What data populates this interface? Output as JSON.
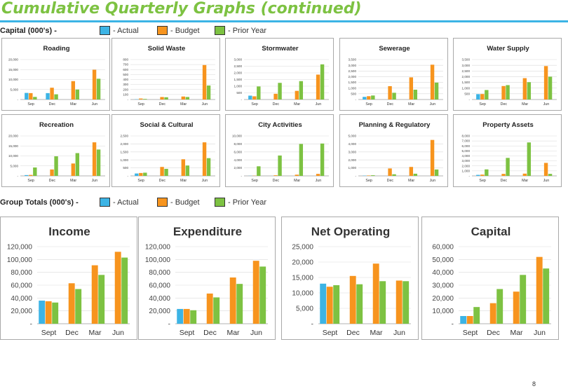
{
  "title": "Cumulative Quarterly Graphs (continued)",
  "page_number": "8",
  "colors": {
    "actual": "#3cb4e5",
    "budget": "#f7941e",
    "prior": "#7dc242",
    "accent": "#3cb4e5"
  },
  "legend_capital": {
    "lead": "Capital (000's) -",
    "actual": "- Actual",
    "budget": "- Budget",
    "prior": "- Prior Year"
  },
  "legend_group": {
    "lead": "Group Totals (000's) -",
    "actual": "- Actual",
    "budget": "- Budget",
    "prior": "- Prior Year"
  },
  "chart_data": [
    {
      "type": "bar",
      "title": "Roading",
      "categories": [
        "Sep",
        "Dec",
        "Mar",
        "Jun"
      ],
      "ylim": [
        0,
        20000
      ],
      "yticks": [
        "-",
        "5,000",
        "10,000",
        "15,000",
        "20,000"
      ],
      "series": [
        {
          "name": "Actual",
          "values": [
            3300,
            3200,
            null,
            null
          ]
        },
        {
          "name": "Budget",
          "values": [
            3200,
            5900,
            9200,
            14900
          ]
        },
        {
          "name": "Prior Year",
          "values": [
            1300,
            2600,
            5000,
            10400
          ]
        }
      ]
    },
    {
      "type": "bar",
      "title": "Solid Waste",
      "categories": [
        "Sep",
        "Dec",
        "Mar",
        "Jun"
      ],
      "ylim": [
        0,
        800
      ],
      "yticks": [
        "-",
        "100",
        "200",
        "300",
        "400",
        "500",
        "600",
        "700",
        "800"
      ],
      "series": [
        {
          "name": "Actual",
          "values": [
            5,
            null,
            null,
            null
          ]
        },
        {
          "name": "Budget",
          "values": [
            20,
            50,
            60,
            690
          ]
        },
        {
          "name": "Prior Year",
          "values": [
            12,
            45,
            50,
            280
          ]
        }
      ]
    },
    {
      "type": "bar",
      "title": "Stormwater",
      "categories": [
        "Sep",
        "Dec",
        "Mar",
        "Jun"
      ],
      "ylim": [
        0,
        3000
      ],
      "yticks": [
        "-",
        "500",
        "1,000",
        "1,500",
        "2,000",
        "2,500",
        "3,000"
      ],
      "series": [
        {
          "name": "Actual",
          "values": [
            290,
            null,
            null,
            null
          ]
        },
        {
          "name": "Budget",
          "values": [
            240,
            430,
            650,
            1870
          ]
        },
        {
          "name": "Prior Year",
          "values": [
            980,
            1250,
            1380,
            2640
          ]
        }
      ]
    },
    {
      "type": "bar",
      "title": "Sewerage",
      "categories": [
        "Sep",
        "Dec",
        "Mar",
        "Jun"
      ],
      "ylim": [
        0,
        3500
      ],
      "yticks": [
        "-",
        "500",
        "1,000",
        "1,500",
        "2,000",
        "2,500",
        "3,000",
        "3,500"
      ],
      "series": [
        {
          "name": "Actual",
          "values": [
            230,
            null,
            null,
            null
          ]
        },
        {
          "name": "Budget",
          "values": [
            290,
            1170,
            1940,
            3050
          ]
        },
        {
          "name": "Prior Year",
          "values": [
            350,
            590,
            860,
            1480
          ]
        }
      ]
    },
    {
      "type": "bar",
      "title": "Water Supply",
      "categories": [
        "Sep",
        "Dec",
        "Mar",
        "Jun"
      ],
      "ylim": [
        0,
        3500
      ],
      "yticks": [
        "-",
        "500",
        "1,000",
        "1,500",
        "2,000",
        "2,500",
        "3,000",
        "3,500"
      ],
      "series": [
        {
          "name": "Actual",
          "values": [
            470,
            null,
            null,
            null
          ]
        },
        {
          "name": "Budget",
          "values": [
            480,
            1180,
            1870,
            2930
          ]
        },
        {
          "name": "Prior Year",
          "values": [
            830,
            1260,
            1520,
            2000
          ]
        }
      ]
    },
    {
      "type": "bar",
      "title": "Recreation",
      "categories": [
        "Sep",
        "Dec",
        "Mar",
        "Jun"
      ],
      "ylim": [
        0,
        20000
      ],
      "yticks": [
        "-",
        "5,000",
        "10,000",
        "15,000",
        "20,000"
      ],
      "series": [
        {
          "name": "Actual",
          "values": [
            400,
            null,
            null,
            null
          ]
        },
        {
          "name": "Budget",
          "values": [
            480,
            3200,
            6200,
            16800
          ]
        },
        {
          "name": "Prior Year",
          "values": [
            4200,
            9800,
            11400,
            13200
          ]
        }
      ]
    },
    {
      "type": "bar",
      "title": "Social & Cultural",
      "categories": [
        "Sep",
        "Dec",
        "Mar",
        "Jun"
      ],
      "ylim": [
        0,
        2500
      ],
      "yticks": [
        "-",
        "500",
        "1,000",
        "1,500",
        "2,000",
        "2,500"
      ],
      "series": [
        {
          "name": "Actual",
          "values": [
            150,
            null,
            null,
            null
          ]
        },
        {
          "name": "Budget",
          "values": [
            180,
            560,
            1040,
            2100
          ]
        },
        {
          "name": "Prior Year",
          "values": [
            200,
            440,
            650,
            1110
          ]
        }
      ]
    },
    {
      "type": "bar",
      "title": "City Activities",
      "categories": [
        "Sep",
        "Dec",
        "Mar",
        "Jun"
      ],
      "ylim": [
        0,
        10000
      ],
      "yticks": [
        "-",
        "2,000",
        "4,000",
        "6,000",
        "8,000",
        "10,000"
      ],
      "series": [
        {
          "name": "Actual",
          "values": [
            30,
            null,
            null,
            null
          ]
        },
        {
          "name": "Budget",
          "values": [
            50,
            150,
            300,
            500
          ]
        },
        {
          "name": "Prior Year",
          "values": [
            2400,
            5100,
            8000,
            8100
          ]
        }
      ]
    },
    {
      "type": "bar",
      "title": "Planning & Regulatory",
      "categories": [
        "Sep",
        "Dec",
        "Mar",
        "Jun"
      ],
      "ylim": [
        0,
        5000
      ],
      "yticks": [
        "-",
        "1,000",
        "2,000",
        "3,000",
        "4,000",
        "5,000"
      ],
      "series": [
        {
          "name": "Actual",
          "values": [
            30,
            null,
            null,
            null
          ]
        },
        {
          "name": "Budget",
          "values": [
            50,
            930,
            1120,
            4500
          ]
        },
        {
          "name": "Prior Year",
          "values": [
            80,
            200,
            270,
            800
          ]
        }
      ]
    },
    {
      "type": "bar",
      "title": "Property Assets",
      "categories": [
        "Sep",
        "Dec",
        "Mar",
        "Jun"
      ],
      "ylim": [
        0,
        8000
      ],
      "yticks": [
        "-",
        "1,000",
        "2,000",
        "3,000",
        "4,000",
        "5,000",
        "6,000",
        "7,000",
        "8,000"
      ],
      "series": [
        {
          "name": "Actual",
          "values": [
            200,
            null,
            null,
            null
          ]
        },
        {
          "name": "Budget",
          "values": [
            250,
            400,
            450,
            2600
          ]
        },
        {
          "name": "Prior Year",
          "values": [
            1300,
            3600,
            6700,
            400
          ]
        }
      ]
    },
    {
      "type": "bar",
      "title": "Income",
      "categories": [
        "Sept",
        "Dec",
        "Mar",
        "Jun"
      ],
      "ylim": [
        0,
        120000
      ],
      "yticks": [
        "-",
        "20,000",
        "40,000",
        "60,000",
        "80,000",
        "100,000",
        "120,000"
      ],
      "series": [
        {
          "name": "Actual",
          "values": [
            36000,
            null,
            null,
            null
          ]
        },
        {
          "name": "Budget",
          "values": [
            35000,
            63000,
            91000,
            112000
          ]
        },
        {
          "name": "Prior Year",
          "values": [
            33000,
            54000,
            76000,
            103000
          ]
        }
      ]
    },
    {
      "type": "bar",
      "title": "Expenditure",
      "categories": [
        "Sept",
        "Dec",
        "Mar",
        "Jun"
      ],
      "ylim": [
        0,
        120000
      ],
      "yticks": [
        "-",
        "20,000",
        "40,000",
        "60,000",
        "80,000",
        "100,000",
        "120,000"
      ],
      "series": [
        {
          "name": "Actual",
          "values": [
            23000,
            null,
            null,
            null
          ]
        },
        {
          "name": "Budget",
          "values": [
            23000,
            47000,
            72000,
            98000
          ]
        },
        {
          "name": "Prior Year",
          "values": [
            21000,
            41000,
            62000,
            89000
          ]
        }
      ]
    },
    {
      "type": "bar",
      "title": "Net Operating",
      "categories": [
        "Sept",
        "Dec",
        "Mar",
        "Jun"
      ],
      "ylim": [
        0,
        25000
      ],
      "yticks": [
        "-",
        "5,000",
        "10,000",
        "15,000",
        "20,000",
        "25,000"
      ],
      "series": [
        {
          "name": "Actual",
          "values": [
            13000,
            null,
            null,
            null
          ]
        },
        {
          "name": "Budget",
          "values": [
            12000,
            15500,
            19500,
            14000
          ]
        },
        {
          "name": "Prior Year",
          "values": [
            12500,
            12800,
            13800,
            13800
          ]
        }
      ]
    },
    {
      "type": "bar",
      "title": "Capital",
      "categories": [
        "Sept",
        "Dec",
        "Mar",
        "Jun"
      ],
      "ylim": [
        0,
        60000
      ],
      "yticks": [
        "-",
        "10,000",
        "20,000",
        "30,000",
        "40,000",
        "50,000",
        "60,000"
      ],
      "series": [
        {
          "name": "Actual",
          "values": [
            6000,
            null,
            null,
            null
          ]
        },
        {
          "name": "Budget",
          "values": [
            6000,
            16000,
            25000,
            52000
          ]
        },
        {
          "name": "Prior Year",
          "values": [
            13000,
            27000,
            38000,
            43000
          ]
        }
      ]
    }
  ]
}
